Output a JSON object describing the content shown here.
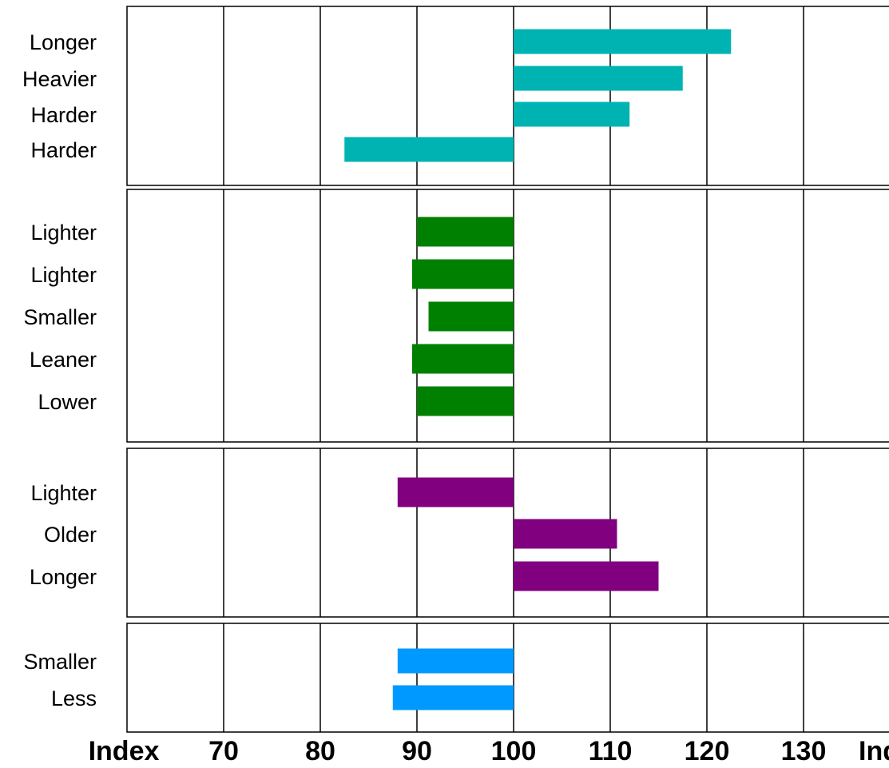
{
  "chart_data": {
    "type": "bar",
    "orientation": "horizontal",
    "baseline": 100,
    "xlim": [
      60,
      130
    ],
    "grid": true,
    "x_tick_values": [
      70,
      80,
      90,
      100,
      110,
      120,
      130
    ],
    "x_tick_labels": [
      "70",
      "80",
      "90",
      "100",
      "110",
      "120",
      "130"
    ],
    "x_axis_left_label": "Index",
    "x_axis_right_label": "Index",
    "panels": [
      {
        "color": "#00B3B3",
        "categories": [
          "Longer",
          "Heavier",
          "Harder",
          "Harder"
        ],
        "values": [
          122.5,
          117.5,
          112,
          82.5
        ]
      },
      {
        "color": "#008000",
        "categories": [
          "Lighter",
          "Lighter",
          "Smaller",
          "Leaner",
          "Lower"
        ],
        "values": [
          90,
          89.5,
          91.2,
          89.5,
          90
        ]
      },
      {
        "color": "#800080",
        "categories": [
          "Lighter",
          "Older",
          "Longer"
        ],
        "values": [
          88,
          110.7,
          115
        ]
      },
      {
        "color": "#0099FF",
        "categories": [
          "Smaller",
          "Less"
        ],
        "values": [
          88,
          87.5
        ]
      }
    ]
  }
}
